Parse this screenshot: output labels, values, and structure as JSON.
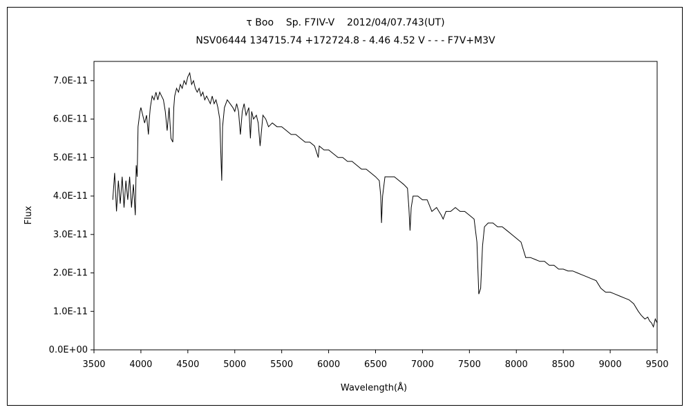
{
  "chart_data": {
    "type": "line",
    "title": "τ Boo    Sp. F7IV-V    2012/04/07.743(UT)",
    "subtitle": "NSV06444 134715.74 +172724.8 - 4.46 4.52 V - - - F7V+M3V",
    "xlabel": "Wavelength(Å)",
    "ylabel": "Flux",
    "xlim": [
      3500,
      9500
    ],
    "ylim": [
      0,
      7.5e-11
    ],
    "x_ticks": [
      3500,
      4000,
      4500,
      5000,
      5500,
      6000,
      6500,
      7000,
      7500,
      8000,
      8500,
      9000,
      9500
    ],
    "x_tick_labels": [
      "3500",
      "4000",
      "4500",
      "5000",
      "5500",
      "6000",
      "6500",
      "7000",
      "7500",
      "8000",
      "8500",
      "9000",
      "9500"
    ],
    "y_ticks": [
      0,
      1e-11,
      2e-11,
      3e-11,
      4e-11,
      5e-11,
      6e-11,
      7e-11
    ],
    "y_tick_labels": [
      "0.0E+00",
      "1.0E-11",
      "2.0E-11",
      "3.0E-11",
      "4.0E-11",
      "5.0E-11",
      "6.0E-11",
      "7.0E-11"
    ],
    "grid": false,
    "series": [
      {
        "values_note_omitted": true,
        "x": [
          3700,
          3720,
          3740,
          3760,
          3780,
          3800,
          3820,
          3840,
          3860,
          3880,
          3900,
          3920,
          3940,
          3950,
          3960,
          3970,
          3990,
          4000,
          4020,
          4040,
          4060,
          4080,
          4090,
          4100,
          4120,
          4140,
          4160,
          4180,
          4200,
          4220,
          4240,
          4260,
          4280,
          4300,
          4320,
          4340,
          4350,
          4360,
          4380,
          4400,
          4420,
          4440,
          4460,
          4480,
          4500,
          4520,
          4540,
          4560,
          4580,
          4600,
          4620,
          4640,
          4660,
          4680,
          4700,
          4720,
          4740,
          4760,
          4780,
          4800,
          4820,
          4840,
          4850,
          4861,
          4870,
          4890,
          4920,
          4950,
          4980,
          5000,
          5020,
          5040,
          5060,
          5080,
          5100,
          5120,
          5150,
          5167,
          5180,
          5200,
          5230,
          5250,
          5270,
          5300,
          5330,
          5360,
          5400,
          5450,
          5500,
          5550,
          5600,
          5650,
          5700,
          5750,
          5800,
          5850,
          5890,
          5900,
          5950,
          6000,
          6050,
          6100,
          6150,
          6200,
          6250,
          6300,
          6350,
          6400,
          6450,
          6500,
          6540,
          6555,
          6563,
          6575,
          6600,
          6650,
          6700,
          6750,
          6800,
          6840,
          6855,
          6867,
          6880,
          6900,
          6950,
          7000,
          7050,
          7100,
          7150,
          7200,
          7220,
          7250,
          7300,
          7350,
          7400,
          7450,
          7500,
          7550,
          7580,
          7600,
          7620,
          7640,
          7660,
          7700,
          7750,
          7800,
          7850,
          7900,
          7950,
          8000,
          8050,
          8100,
          8150,
          8200,
          8250,
          8300,
          8350,
          8400,
          8450,
          8500,
          8550,
          8600,
          8650,
          8700,
          8750,
          8800,
          8850,
          8900,
          8950,
          9000,
          9050,
          9100,
          9150,
          9200,
          9250,
          9300,
          9330,
          9350,
          9370,
          9400,
          9420,
          9440,
          9460,
          9480,
          9500
        ],
        "y": [
          3.9e-11,
          4.6e-11,
          3.6e-11,
          4.4e-11,
          3.8e-11,
          4.5e-11,
          3.7e-11,
          4.4e-11,
          3.9e-11,
          4.5e-11,
          3.7e-11,
          4.3e-11,
          3.5e-11,
          4.8e-11,
          4.5e-11,
          5.8e-11,
          6.2e-11,
          6.3e-11,
          6.1e-11,
          5.9e-11,
          6.1e-11,
          5.6e-11,
          6e-11,
          6.3e-11,
          6.6e-11,
          6.5e-11,
          6.7e-11,
          6.5e-11,
          6.7e-11,
          6.6e-11,
          6.5e-11,
          6.2e-11,
          5.7e-11,
          6.3e-11,
          5.5e-11,
          5.4e-11,
          6.3e-11,
          6.6e-11,
          6.8e-11,
          6.7e-11,
          6.9e-11,
          6.8e-11,
          7e-11,
          6.9e-11,
          7.1e-11,
          7.2e-11,
          6.9e-11,
          7e-11,
          6.8e-11,
          6.7e-11,
          6.8e-11,
          6.6e-11,
          6.7e-11,
          6.5e-11,
          6.6e-11,
          6.5e-11,
          6.4e-11,
          6.6e-11,
          6.4e-11,
          6.5e-11,
          6.3e-11,
          6e-11,
          5.2e-11,
          4.4e-11,
          5.8e-11,
          6.3e-11,
          6.5e-11,
          6.4e-11,
          6.3e-11,
          6.2e-11,
          6.4e-11,
          6.2e-11,
          5.6e-11,
          6.2e-11,
          6.4e-11,
          6.1e-11,
          6.3e-11,
          5.5e-11,
          6.2e-11,
          6e-11,
          6.1e-11,
          5.9e-11,
          5.3e-11,
          6.1e-11,
          6e-11,
          5.8e-11,
          5.9e-11,
          5.8e-11,
          5.8e-11,
          5.7e-11,
          5.6e-11,
          5.6e-11,
          5.5e-11,
          5.4e-11,
          5.4e-11,
          5.3e-11,
          5e-11,
          5.3e-11,
          5.2e-11,
          5.2e-11,
          5.1e-11,
          5e-11,
          5e-11,
          4.9e-11,
          4.9e-11,
          4.8e-11,
          4.7e-11,
          4.7e-11,
          4.6e-11,
          4.5e-11,
          4.4e-11,
          4e-11,
          3.3e-11,
          4e-11,
          4.5e-11,
          4.5e-11,
          4.5e-11,
          4.4e-11,
          4.3e-11,
          4.2e-11,
          3.7e-11,
          3.1e-11,
          3.7e-11,
          4e-11,
          4e-11,
          3.9e-11,
          3.9e-11,
          3.6e-11,
          3.7e-11,
          3.5e-11,
          3.4e-11,
          3.6e-11,
          3.6e-11,
          3.7e-11,
          3.6e-11,
          3.6e-11,
          3.5e-11,
          3.4e-11,
          2.8e-11,
          1.45e-11,
          1.6e-11,
          2.7e-11,
          3.2e-11,
          3.3e-11,
          3.3e-11,
          3.2e-11,
          3.2e-11,
          3.1e-11,
          3e-11,
          2.9e-11,
          2.8e-11,
          2.4e-11,
          2.4e-11,
          2.35e-11,
          2.3e-11,
          2.3e-11,
          2.2e-11,
          2.2e-11,
          2.1e-11,
          2.1e-11,
          2.05e-11,
          2.05e-11,
          2e-11,
          1.95e-11,
          1.9e-11,
          1.85e-11,
          1.8e-11,
          1.6e-11,
          1.5e-11,
          1.5e-11,
          1.45e-11,
          1.4e-11,
          1.35e-11,
          1.3e-11,
          1.2e-11,
          1e-11,
          9e-12,
          8.5e-12,
          8e-12,
          8.5e-12,
          7.5e-12,
          7e-12,
          6e-12,
          8e-12,
          7e-12
        ]
      }
    ]
  }
}
